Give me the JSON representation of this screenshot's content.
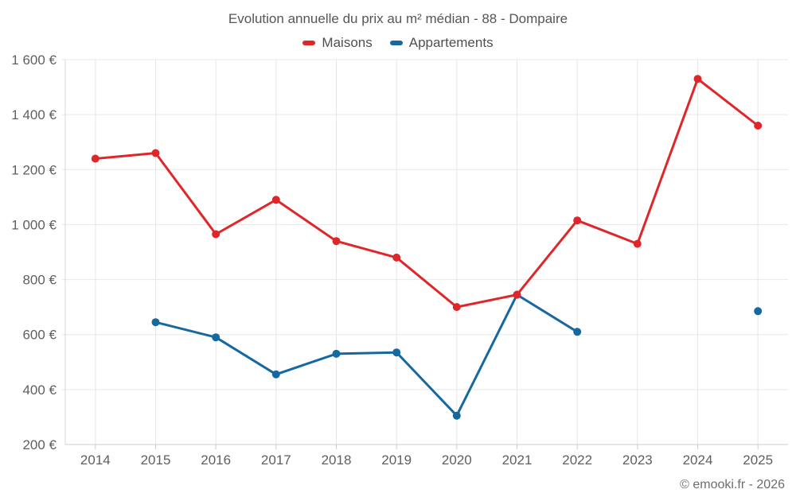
{
  "title": "Evolution annuelle du prix au m² médian - 88 - Dompaire",
  "legend": [
    {
      "label": "Maisons",
      "color": "#e02629"
    },
    {
      "label": "Appartements",
      "color": "#1568a0"
    }
  ],
  "footer": "© emooki.fr - 2026",
  "colors": {
    "maisons": "#e02629",
    "appartements": "#1568a0",
    "gridline": "#e7e7e7",
    "axis_line": "#cccccc",
    "left_border": "#d8d8d8",
    "tick_label": "#5f5f5f"
  },
  "chart_data": {
    "type": "line",
    "x": [
      "2014",
      "2015",
      "2016",
      "2017",
      "2018",
      "2019",
      "2020",
      "2021",
      "2022",
      "2023",
      "2024",
      "2025"
    ],
    "series": [
      {
        "name": "Maisons",
        "color": "#e02629",
        "values": [
          1240,
          1260,
          965,
          1090,
          940,
          880,
          700,
          745,
          1015,
          930,
          1530,
          1360
        ]
      },
      {
        "name": "Appartements",
        "color": "#1568a0",
        "values": [
          null,
          645,
          590,
          455,
          530,
          535,
          305,
          745,
          610,
          null,
          null,
          685
        ]
      }
    ],
    "title": "Evolution annuelle du prix au m² médian - 88 - Dompaire",
    "xlabel": "",
    "ylabel": "",
    "ylim": [
      200,
      1600
    ],
    "ytick_step": 200,
    "ytick_labels": [
      "200 €",
      "400 €",
      "600 €",
      "800 €",
      "1 000 €",
      "1 200 €",
      "1 400 €",
      "1 600 €"
    ],
    "grid": true,
    "legend_position": "top",
    "marker": "circle"
  }
}
